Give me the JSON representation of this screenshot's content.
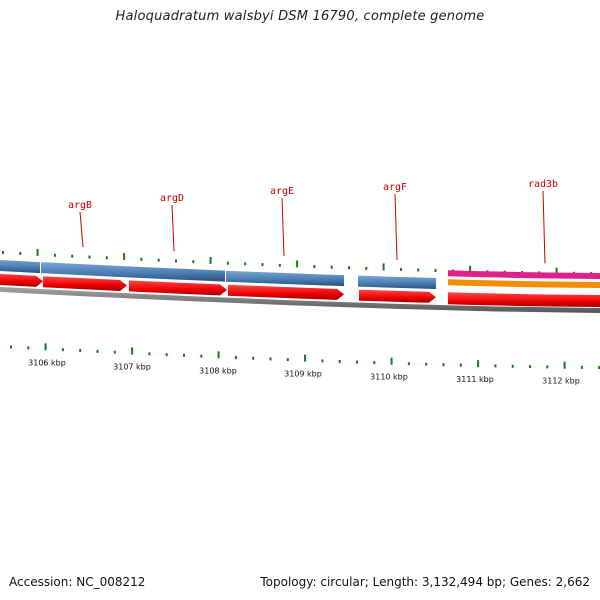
{
  "title": "Haloquadratum walsbyi DSM 16790, complete genome",
  "accession": "Accession: NC_008212",
  "summary": "Topology: circular; Length: 3,132,494 bp; Genes: 2,662",
  "gene_labels": [
    "argB",
    "argD",
    "argE",
    "argF",
    "rad3b"
  ],
  "kbp_labels": [
    "3106 kbp",
    "3107 kbp",
    "3108 kbp",
    "3109 kbp",
    "3110 kbp",
    "3111 kbp",
    "3112 kbp"
  ],
  "colors": {
    "gene_label": "#cc0000",
    "cds_track": "#4a7fb5",
    "gene_arrow": "#ee0000",
    "backbone": "#7a7a7a",
    "tick": "#1a7a1a",
    "highlight_magenta": "#e0218a",
    "highlight_orange": "#f28c00"
  }
}
